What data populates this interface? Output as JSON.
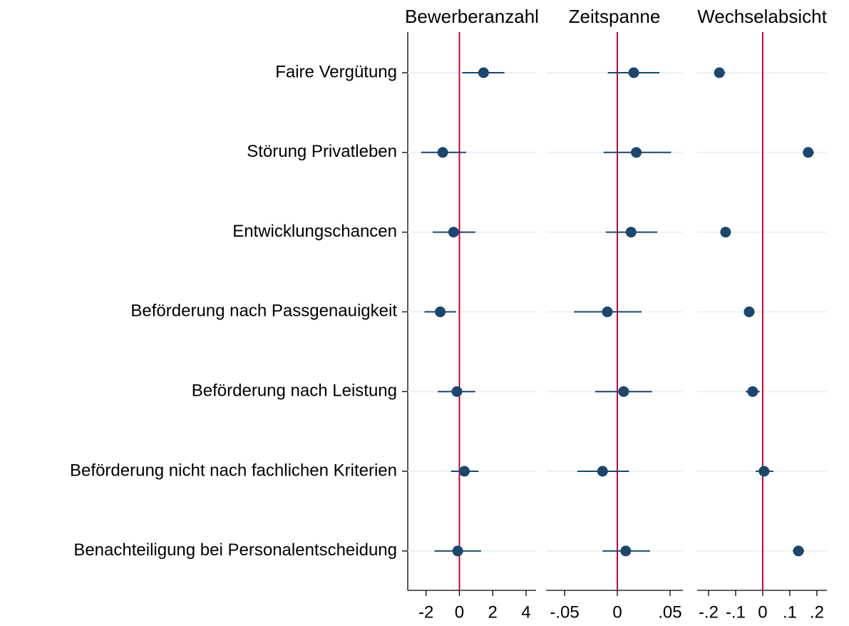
{
  "chart_data": {
    "type": "coefplot",
    "categories": [
      "Faire Vergütung",
      "Störung Privatleben",
      "Entwicklungschancen",
      "Beförderung nach Passgenauigkeit",
      "Beförderung nach Leistung",
      "Beförderung nicht nach fachlichen Kriterien",
      "Benachteiligung bei Personalentscheidung"
    ],
    "color": "#1a476f",
    "refline": 0,
    "refline_color": "#c10534",
    "grid": true,
    "panels": [
      {
        "title": "Bewerberanzahl",
        "xlim": [
          -3.1,
          4.6
        ],
        "xticks": [
          -2,
          0,
          2,
          4
        ],
        "values": [
          1.45,
          -1.0,
          -0.35,
          -1.15,
          -0.15,
          0.3,
          -0.1
        ],
        "lower": [
          0.17,
          -2.3,
          -1.6,
          -2.1,
          -1.3,
          -0.5,
          -1.5
        ],
        "upper": [
          2.7,
          0.4,
          0.95,
          -0.2,
          0.95,
          1.15,
          1.3
        ]
      },
      {
        "title": "Zeitspanne",
        "xlim": [
          -0.0676,
          0.0622
        ],
        "xticks": [
          {
            "value": -0.05,
            "label": "-.05"
          },
          0,
          {
            "value": 0.05,
            "label": ".05"
          }
        ],
        "values": [
          0.0156,
          0.018,
          0.013,
          -0.0095,
          0.006,
          -0.014,
          0.008
        ],
        "lower": [
          -0.009,
          -0.013,
          -0.011,
          -0.041,
          -0.021,
          -0.038,
          -0.014
        ],
        "upper": [
          0.04,
          0.051,
          0.038,
          0.023,
          0.033,
          0.011,
          0.031
        ]
      },
      {
        "title": "Wechselabsicht",
        "xlim": [
          -0.242,
          0.237
        ],
        "xticks": [
          {
            "value": -0.2,
            "label": "-.2"
          },
          {
            "value": -0.1,
            "label": "-.1"
          },
          0,
          {
            "value": 0.1,
            "label": ".1"
          },
          {
            "value": 0.2,
            "label": ".2"
          }
        ],
        "values": [
          -0.16,
          0.168,
          -0.137,
          -0.05,
          -0.037,
          0.005,
          0.132
        ],
        "lower": [
          -0.179,
          0.15,
          -0.145,
          -0.066,
          -0.063,
          -0.026,
          0.111
        ],
        "upper": [
          -0.139,
          0.189,
          -0.126,
          -0.032,
          -0.011,
          0.039,
          0.153
        ]
      }
    ]
  }
}
